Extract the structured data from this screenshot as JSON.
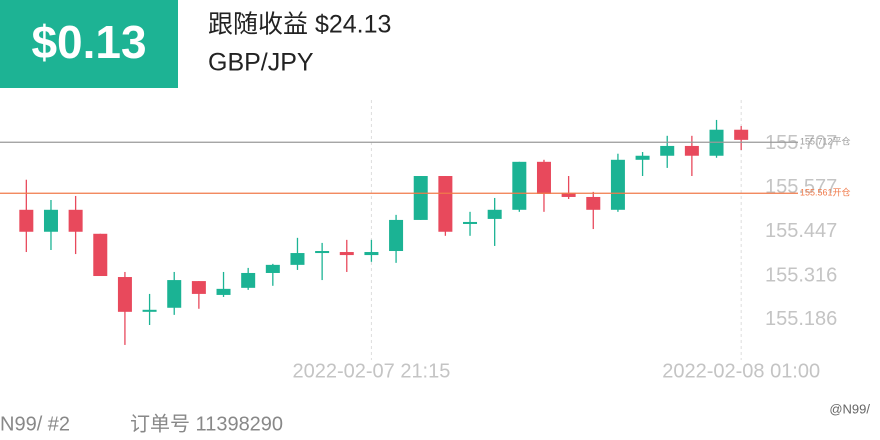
{
  "header": {
    "badge": "$0.13",
    "title": "跟随收益 $24.13",
    "subtitle": "GBP/JPY"
  },
  "chart_data": {
    "type": "candlestick",
    "categories": [
      null,
      null,
      null,
      null,
      null,
      null,
      null,
      null,
      null,
      null,
      null,
      null,
      null,
      null,
      "2022-02-07 21:15",
      null,
      null,
      null,
      null,
      null,
      null,
      null,
      null,
      null,
      null,
      null,
      null,
      null,
      null,
      "2022-02-08 01:00"
    ],
    "open": [
      155.512,
      155.447,
      155.512,
      155.441,
      155.313,
      155.21,
      155.222,
      155.301,
      155.26,
      155.281,
      155.325,
      155.349,
      155.384,
      155.387,
      155.378,
      155.39,
      155.482,
      155.612,
      155.47,
      155.485,
      155.512,
      155.654,
      155.562,
      155.55,
      155.512,
      155.66,
      155.672,
      155.701,
      155.672,
      155.749
    ],
    "high": [
      155.601,
      155.541,
      155.553,
      155.441,
      155.328,
      155.263,
      155.328,
      155.301,
      155.328,
      155.34,
      155.352,
      155.429,
      155.414,
      155.423,
      155.423,
      155.497,
      155.612,
      155.612,
      155.506,
      155.547,
      155.654,
      155.66,
      155.612,
      155.565,
      155.678,
      155.683,
      155.731,
      155.731,
      155.778,
      155.76
    ],
    "low": [
      155.387,
      155.393,
      155.381,
      155.316,
      155.112,
      155.171,
      155.201,
      155.219,
      155.254,
      155.275,
      155.287,
      155.334,
      155.304,
      155.328,
      155.358,
      155.355,
      155.482,
      155.435,
      155.435,
      155.405,
      155.506,
      155.506,
      155.544,
      155.455,
      155.506,
      155.612,
      155.636,
      155.612,
      155.666,
      155.689
    ],
    "close": [
      155.447,
      155.512,
      155.447,
      155.316,
      155.21,
      155.216,
      155.304,
      155.263,
      155.278,
      155.325,
      155.349,
      155.384,
      155.39,
      155.378,
      155.387,
      155.482,
      155.612,
      155.447,
      155.476,
      155.512,
      155.654,
      155.559,
      155.55,
      155.512,
      155.66,
      155.672,
      155.701,
      155.672,
      155.749,
      155.719
    ],
    "up_color": "#1bb394",
    "down_color": "#e8495c",
    "ylim": [
      155.097,
      155.837
    ],
    "yticks": [
      155.186,
      155.316,
      155.447,
      155.577,
      155.707
    ],
    "levels": [
      {
        "value": 155.712,
        "label": "155.712平仓",
        "color": "#9a9a9a"
      },
      {
        "value": 155.561,
        "label": "155.561开仓",
        "color": "#f07a4a"
      }
    ],
    "grid": false
  },
  "footer": {
    "account": "N99/ #2",
    "order": "订单号 11398290",
    "watermark": "@N99/"
  }
}
